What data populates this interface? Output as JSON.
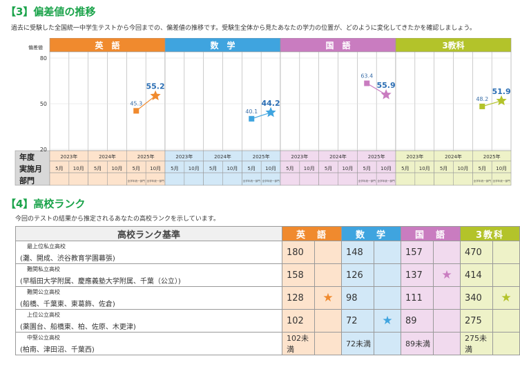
{
  "section3": {
    "title": "【3】偏差値の推移",
    "description": "過去に受験した全国統一中学生テストから今回までの、偏差値の推移です。受験生全体から見たあなたの学力の位置が、どのように変化してきたかを確認しましょう。"
  },
  "section4": {
    "title": "【4】高校ランク",
    "description": "今回のテストの結果から推定されるあなたの高校ランクを示しています。"
  },
  "colors": {
    "english": "#f08a2e",
    "english_bg": "#fde3cc",
    "math": "#3fa4df",
    "math_bg": "#d2e8f7",
    "japanese": "#c97cc0",
    "japanese_bg": "#f1daee",
    "total": "#b3c32a",
    "total_bg": "#eef2c8",
    "title_green": "#1aa34a"
  },
  "chart_data": {
    "type": "line",
    "ylabel": "偏差値",
    "ylim": [
      20,
      80
    ],
    "yticks": [
      20,
      50,
      80
    ],
    "row_labels": {
      "year": "年度",
      "month": "実施月",
      "division": "部門"
    },
    "years": [
      "2023年",
      "2024年",
      "2025年"
    ],
    "months": [
      "5月",
      "10月"
    ],
    "division_text": "全学年統一部門",
    "panels": [
      {
        "name": "英　語",
        "color_key": "english",
        "points": [
          {
            "x": "2025年5月",
            "y": 45.3
          },
          {
            "x": "2025年10月",
            "y": 55.2
          }
        ]
      },
      {
        "name": "数　学",
        "color_key": "math",
        "points": [
          {
            "x": "2025年5月",
            "y": 40.1
          },
          {
            "x": "2025年10月",
            "y": 44.2
          }
        ]
      },
      {
        "name": "国　語",
        "color_key": "japanese",
        "points": [
          {
            "x": "2025年5月",
            "y": 63.4
          },
          {
            "x": "2025年10月",
            "y": 55.9
          }
        ]
      },
      {
        "name": "3教科",
        "color_key": "total",
        "points": [
          {
            "x": "2025年5月",
            "y": 48.2
          },
          {
            "x": "2025年10月",
            "y": 51.9
          }
        ]
      }
    ]
  },
  "rank_table": {
    "header": "高校ランク基準",
    "subjects": [
      "英　語",
      "数　学",
      "国　語",
      "3教科"
    ],
    "rows": [
      {
        "name": "最上位私立高校",
        "schools": "(灘、開成、渋谷教育学園幕張)",
        "values": [
          "180",
          "148",
          "157",
          "470"
        ],
        "marks": [
          "",
          "",
          "",
          ""
        ]
      },
      {
        "name": "難関私立高校",
        "schools": "(早稲田大学附属、慶應義塾大学附属、千葉（公立）)",
        "values": [
          "158",
          "126",
          "137",
          "414"
        ],
        "marks": [
          "",
          "",
          "★",
          ""
        ]
      },
      {
        "name": "難関公立高校",
        "schools": "(船橋、千葉東、東葛飾、佐倉)",
        "values": [
          "128",
          "98",
          "111",
          "340"
        ],
        "marks": [
          "★",
          "",
          "",
          "★"
        ]
      },
      {
        "name": "上位公立高校",
        "schools": "(薬園台、船橋東、柏、佐原、木更津)",
        "values": [
          "102",
          "72",
          "89",
          "275"
        ],
        "marks": [
          "",
          "★",
          "",
          ""
        ]
      },
      {
        "name": "中堅公立高校",
        "schools": "(柏南、津田沼、千葉西)",
        "values": [
          "102未満",
          "72未満",
          "89未満",
          "275未満"
        ],
        "marks": [
          "",
          "",
          "",
          ""
        ]
      }
    ]
  }
}
